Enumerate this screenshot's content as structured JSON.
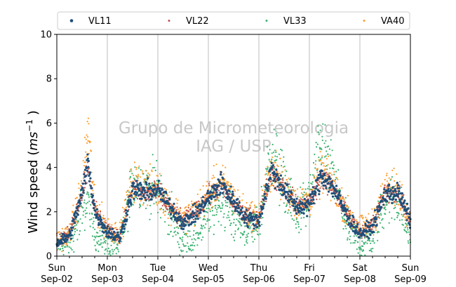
{
  "chart_data": {
    "type": "scatter",
    "ylabel_main": "Wind speed (",
    "ylabel_unit": "ms",
    "ylabel_exp": "−1",
    "ylabel_close": " )",
    "ylim": [
      0,
      10
    ],
    "yticks": [
      "0",
      "2",
      "4",
      "6",
      "8",
      "10"
    ],
    "xlim": [
      "2018-09-02 00:00",
      "2018-09-09 00:00"
    ],
    "xticks": [
      {
        "day": "Sun",
        "date": "Sep-02"
      },
      {
        "day": "Mon",
        "date": "Sep-03"
      },
      {
        "day": "Tue",
        "date": "Sep-04"
      },
      {
        "day": "Wed",
        "date": "Sep-05"
      },
      {
        "day": "Thu",
        "date": "Sep-06"
      },
      {
        "day": "Fri",
        "date": "Sep-07"
      },
      {
        "day": "Sat",
        "date": "Sep-08"
      },
      {
        "day": "Sun",
        "date": "Sep-09"
      }
    ],
    "grid": "vertical lines at day boundaries",
    "legend": "top, 4 columns",
    "watermark": [
      "Grupo de Micrometeorologia",
      "IAG / USP"
    ],
    "series": [
      {
        "name": "VL11",
        "color": "#1f4e79",
        "profile": [
          [
            0,
            0.6
          ],
          [
            0.25,
            0.9
          ],
          [
            0.5,
            2.8
          ],
          [
            0.62,
            4.3
          ],
          [
            0.75,
            2.0
          ],
          [
            1.0,
            1.1
          ],
          [
            1.25,
            0.8
          ],
          [
            1.5,
            3.0
          ],
          [
            1.75,
            2.9
          ],
          [
            2.0,
            3.0
          ],
          [
            2.25,
            2.2
          ],
          [
            2.5,
            1.5
          ],
          [
            2.75,
            1.9
          ],
          [
            3.0,
            2.6
          ],
          [
            3.25,
            3.3
          ],
          [
            3.5,
            2.5
          ],
          [
            3.75,
            1.7
          ],
          [
            4.0,
            1.6
          ],
          [
            4.25,
            3.9
          ],
          [
            4.5,
            3.0
          ],
          [
            4.75,
            2.2
          ],
          [
            5.0,
            2.3
          ],
          [
            5.25,
            3.7
          ],
          [
            5.5,
            3.0
          ],
          [
            5.75,
            1.8
          ],
          [
            6.0,
            1.0
          ],
          [
            6.25,
            1.3
          ],
          [
            6.5,
            2.8
          ],
          [
            6.75,
            2.9
          ],
          [
            7.0,
            1.6
          ]
        ]
      },
      {
        "name": "VL22",
        "color": "#c0504d",
        "profile": [
          [
            0,
            0.7
          ],
          [
            0.25,
            1.0
          ],
          [
            0.5,
            2.9
          ],
          [
            0.62,
            4.1
          ],
          [
            0.75,
            2.1
          ],
          [
            1.0,
            1.2
          ],
          [
            1.25,
            0.9
          ],
          [
            1.5,
            3.1
          ],
          [
            1.75,
            2.8
          ],
          [
            2.0,
            2.9
          ],
          [
            2.25,
            2.1
          ],
          [
            2.5,
            1.6
          ],
          [
            2.75,
            2.0
          ],
          [
            3.0,
            2.7
          ],
          [
            3.25,
            3.2
          ],
          [
            3.5,
            2.4
          ],
          [
            3.75,
            1.8
          ],
          [
            4.0,
            1.7
          ],
          [
            4.25,
            3.8
          ],
          [
            4.5,
            3.1
          ],
          [
            4.75,
            2.3
          ],
          [
            5.0,
            2.4
          ],
          [
            5.25,
            3.6
          ],
          [
            5.5,
            2.9
          ],
          [
            5.75,
            1.9
          ],
          [
            6.0,
            1.1
          ],
          [
            6.25,
            1.4
          ],
          [
            6.5,
            2.9
          ],
          [
            6.75,
            2.8
          ],
          [
            7.0,
            1.7
          ]
        ]
      },
      {
        "name": "VL33",
        "color": "#3cb371",
        "profile": [
          [
            0,
            0.5
          ],
          [
            0.25,
            0.6
          ],
          [
            0.5,
            2.0
          ],
          [
            0.62,
            2.5
          ],
          [
            0.75,
            1.0
          ],
          [
            1.0,
            0.6
          ],
          [
            1.25,
            0.5
          ],
          [
            1.5,
            3.3
          ],
          [
            1.75,
            3.2
          ],
          [
            2.0,
            3.0
          ],
          [
            2.25,
            1.8
          ],
          [
            2.5,
            0.7
          ],
          [
            2.75,
            0.9
          ],
          [
            3.0,
            1.8
          ],
          [
            3.25,
            2.6
          ],
          [
            3.5,
            1.7
          ],
          [
            3.75,
            1.2
          ],
          [
            4.0,
            1.4
          ],
          [
            4.25,
            4.8
          ],
          [
            4.5,
            3.2
          ],
          [
            4.75,
            1.8
          ],
          [
            5.0,
            2.6
          ],
          [
            5.25,
            4.9
          ],
          [
            5.5,
            3.4
          ],
          [
            5.75,
            1.3
          ],
          [
            6.0,
            0.5
          ],
          [
            6.25,
            0.8
          ],
          [
            6.5,
            2.5
          ],
          [
            6.75,
            2.6
          ],
          [
            7.0,
            0.8
          ]
        ]
      },
      {
        "name": "VA40",
        "color": "#ff9f2f",
        "profile": [
          [
            0,
            0.7
          ],
          [
            0.25,
            1.0
          ],
          [
            0.5,
            3.1
          ],
          [
            0.62,
            5.8
          ],
          [
            0.75,
            2.2
          ],
          [
            1.0,
            1.3
          ],
          [
            1.25,
            1.0
          ],
          [
            1.5,
            3.4
          ],
          [
            1.75,
            3.2
          ],
          [
            2.0,
            3.0
          ],
          [
            2.25,
            2.3
          ],
          [
            2.5,
            1.7
          ],
          [
            2.75,
            2.1
          ],
          [
            3.0,
            2.8
          ],
          [
            3.25,
            3.4
          ],
          [
            3.5,
            2.6
          ],
          [
            3.75,
            1.9
          ],
          [
            4.0,
            1.8
          ],
          [
            4.25,
            4.0
          ],
          [
            4.5,
            3.2
          ],
          [
            4.75,
            2.4
          ],
          [
            5.0,
            2.5
          ],
          [
            5.25,
            3.8
          ],
          [
            5.5,
            3.1
          ],
          [
            5.75,
            2.0
          ],
          [
            6.0,
            1.2
          ],
          [
            6.25,
            1.5
          ],
          [
            6.5,
            3.0
          ],
          [
            6.75,
            3.0
          ],
          [
            7.0,
            1.8
          ]
        ]
      }
    ]
  }
}
